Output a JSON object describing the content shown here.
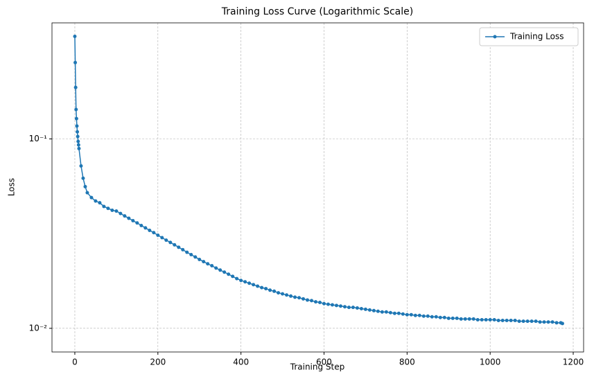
{
  "chart_data": {
    "type": "line",
    "title": "Training Loss Curve (Logarithmic Scale)",
    "xlabel": "Training Step",
    "ylabel": "Loss",
    "x": [
      0,
      1,
      2,
      3,
      4,
      5,
      6,
      7,
      8,
      9,
      10,
      15,
      20,
      25,
      30,
      40,
      50,
      60,
      70,
      80,
      90,
      100,
      110,
      120,
      130,
      140,
      150,
      160,
      170,
      180,
      190,
      200,
      210,
      220,
      230,
      240,
      250,
      260,
      270,
      280,
      290,
      300,
      310,
      320,
      330,
      340,
      350,
      360,
      370,
      380,
      390,
      400,
      410,
      420,
      430,
      440,
      450,
      460,
      470,
      480,
      490,
      500,
      510,
      520,
      530,
      540,
      550,
      560,
      570,
      580,
      590,
      600,
      610,
      620,
      630,
      640,
      650,
      660,
      670,
      680,
      690,
      700,
      710,
      720,
      730,
      740,
      750,
      760,
      770,
      780,
      790,
      800,
      810,
      820,
      830,
      840,
      850,
      860,
      870,
      880,
      890,
      900,
      910,
      920,
      930,
      940,
      950,
      960,
      970,
      980,
      990,
      1000,
      1010,
      1020,
      1030,
      1040,
      1050,
      1060,
      1070,
      1080,
      1090,
      1100,
      1110,
      1120,
      1130,
      1140,
      1150,
      1160,
      1170,
      1174
    ],
    "series": [
      {
        "name": "Training Loss",
        "color": "#1f77b4",
        "values": [
          0.348,
          0.253,
          0.187,
          0.143,
          0.128,
          0.117,
          0.109,
          0.103,
          0.097,
          0.093,
          0.089,
          0.072,
          0.062,
          0.056,
          0.052,
          0.049,
          0.047,
          0.046,
          0.044,
          0.043,
          0.042,
          0.0416,
          0.0404,
          0.0392,
          0.0381,
          0.037,
          0.036,
          0.0349,
          0.0339,
          0.0329,
          0.032,
          0.031,
          0.0301,
          0.0292,
          0.0284,
          0.0276,
          0.0268,
          0.026,
          0.0252,
          0.0245,
          0.0238,
          0.0231,
          0.0225,
          0.0219,
          0.0214,
          0.0208,
          0.0203,
          0.0198,
          0.0193,
          0.0188,
          0.0183,
          0.0179,
          0.0176,
          0.0173,
          0.017,
          0.0167,
          0.0164,
          0.0162,
          0.0159,
          0.0157,
          0.0154,
          0.0152,
          0.015,
          0.0148,
          0.0146,
          0.0145,
          0.0143,
          0.0141,
          0.014,
          0.0138,
          0.0137,
          0.0135,
          0.0134,
          0.0133,
          0.0132,
          0.0131,
          0.013,
          0.0129,
          0.0129,
          0.0128,
          0.0127,
          0.0126,
          0.0125,
          0.0124,
          0.0123,
          0.0122,
          0.0122,
          0.0121,
          0.012,
          0.012,
          0.0119,
          0.0118,
          0.0118,
          0.0117,
          0.0117,
          0.0116,
          0.0116,
          0.0115,
          0.0115,
          0.0114,
          0.0114,
          0.0113,
          0.0113,
          0.0113,
          0.0112,
          0.0112,
          0.0112,
          0.0112,
          0.0111,
          0.0111,
          0.0111,
          0.0111,
          0.0111,
          0.011,
          0.011,
          0.011,
          0.011,
          0.011,
          0.0109,
          0.0109,
          0.0109,
          0.0109,
          0.0109,
          0.0108,
          0.0108,
          0.0108,
          0.0108,
          0.0107,
          0.0107,
          0.0106
        ]
      }
    ],
    "xlim": [
      -55,
      1225
    ],
    "ylim": [
      0.0075,
      0.41
    ],
    "xticks": [
      0,
      200,
      400,
      600,
      800,
      1000,
      1200
    ],
    "yticks": [
      {
        "value": 0.1,
        "label": "10⁻¹"
      },
      {
        "value": 0.01,
        "label": "10⁻²"
      }
    ],
    "yscale": "log",
    "grid": true,
    "legend": "upper right"
  }
}
